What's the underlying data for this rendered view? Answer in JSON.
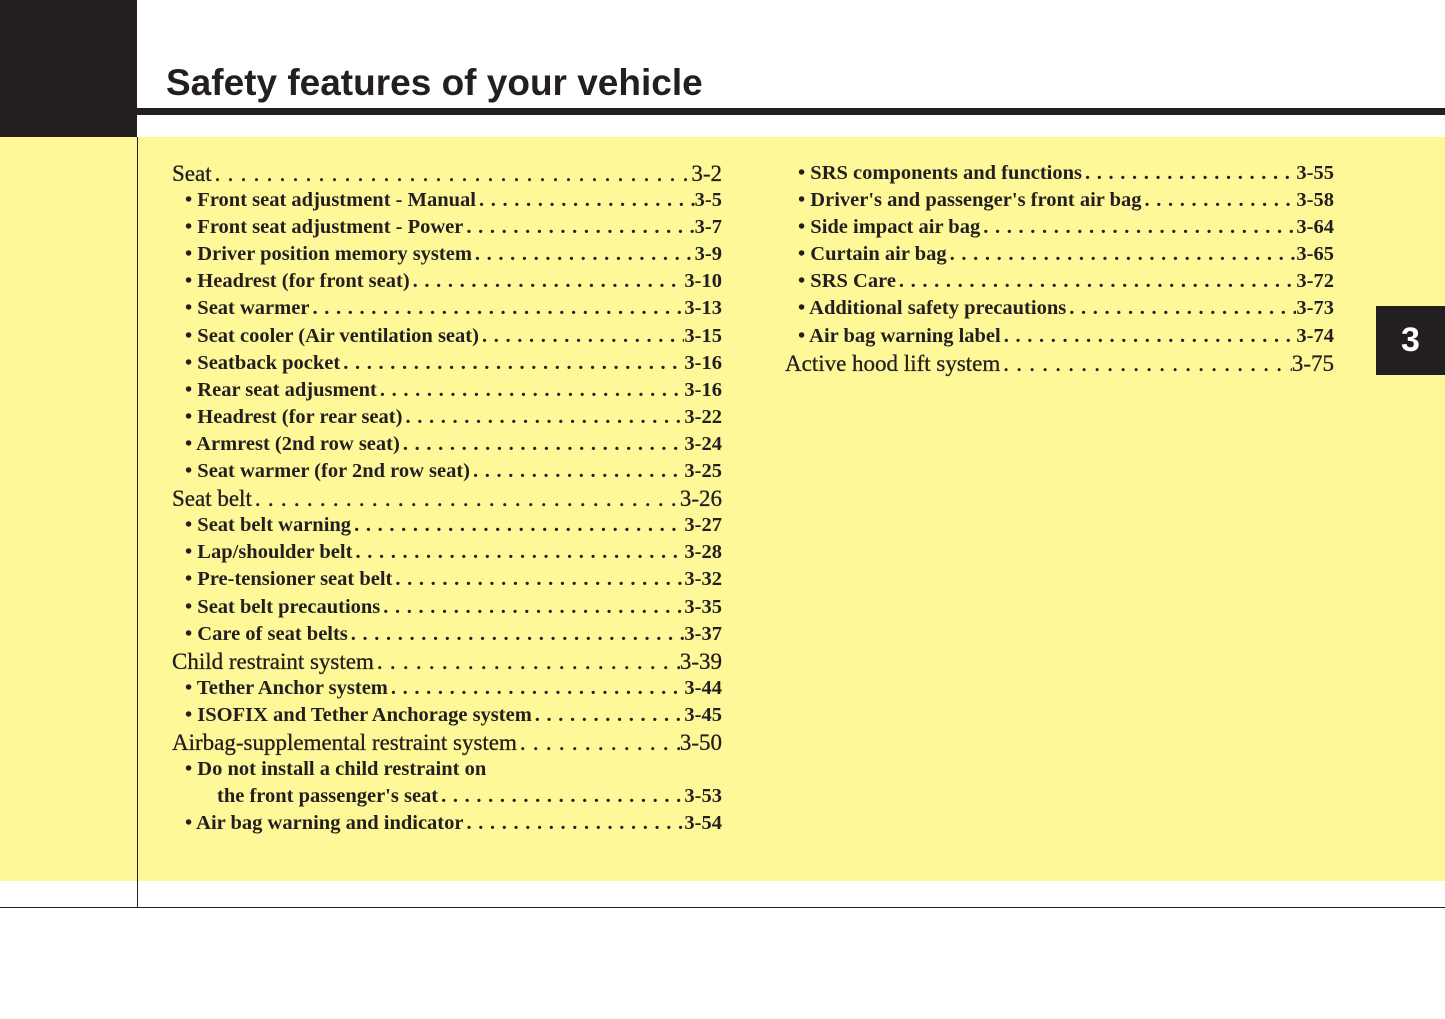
{
  "header": {
    "title": "Safety features of your vehicle"
  },
  "chapter_tab": "3",
  "toc_left": [
    {
      "label": "Seat",
      "page": "3-2",
      "level": "h"
    },
    {
      "label": "• Front seat adjustment - Manual",
      "page": "3-5",
      "level": "sub"
    },
    {
      "label": "• Front seat adjustment - Power",
      "page": "3-7",
      "level": "sub"
    },
    {
      "label": "• Driver position memory system",
      "page": "3-9",
      "level": "sub"
    },
    {
      "label": "• Headrest (for front seat)",
      "page": "3-10",
      "level": "sub"
    },
    {
      "label": "• Seat warmer",
      "page": "3-13",
      "level": "sub"
    },
    {
      "label": "• Seat cooler (Air ventilation seat)",
      "page": "3-15",
      "level": "sub"
    },
    {
      "label": "• Seatback pocket",
      "page": "3-16",
      "level": "sub"
    },
    {
      "label": "• Rear seat adjusment",
      "page": "3-16",
      "level": "sub"
    },
    {
      "label": "• Headrest (for rear seat)",
      "page": "3-22",
      "level": "sub"
    },
    {
      "label": "• Armrest (2nd row seat)",
      "page": "3-24",
      "level": "sub"
    },
    {
      "label": "• Seat warmer (for 2nd row seat)",
      "page": "3-25",
      "level": "sub"
    },
    {
      "label": "Seat belt",
      "page": "3-26",
      "level": "h"
    },
    {
      "label": "• Seat belt warning",
      "page": "3-27",
      "level": "sub"
    },
    {
      "label": "• Lap/shoulder belt",
      "page": "3-28",
      "level": "sub"
    },
    {
      "label": "• Pre-tensioner seat belt",
      "page": "3-32",
      "level": "sub"
    },
    {
      "label": "• Seat belt precautions",
      "page": "3-35",
      "level": "sub"
    },
    {
      "label": "• Care of seat belts",
      "page": "3-37",
      "level": "sub"
    },
    {
      "label": "Child restraint system",
      "page": "3-39",
      "level": "h"
    },
    {
      "label": "• Tether Anchor system",
      "page": "3-44",
      "level": "sub"
    },
    {
      "label": "• ISOFIX and Tether Anchorage system",
      "page": "3-45",
      "level": "sub"
    },
    {
      "label": "Airbag-supplemental restraint system",
      "page": "3-50",
      "level": "h"
    },
    {
      "label": "• Do not install a child restraint on",
      "page": "",
      "level": "sub"
    },
    {
      "label": "the front passenger's seat",
      "page": "3-53",
      "level": "cont"
    },
    {
      "label": "• Air bag warning and indicator",
      "page": "3-54",
      "level": "sub"
    }
  ],
  "toc_right": [
    {
      "label": "• SRS components and functions",
      "page": "3-55",
      "level": "sub"
    },
    {
      "label": "• Driver's and passenger's front air bag",
      "page": "3-58",
      "level": "sub"
    },
    {
      "label": "• Side impact air bag",
      "page": "3-64",
      "level": "sub"
    },
    {
      "label": "• Curtain air bag",
      "page": "3-65",
      "level": "sub"
    },
    {
      "label": "• SRS Care",
      "page": "3-72",
      "level": "sub"
    },
    {
      "label": "• Additional safety precautions",
      "page": "3-73",
      "level": "sub"
    },
    {
      "label": "• Air bag warning label",
      "page": "3-74",
      "level": "sub"
    },
    {
      "label": "Active hood lift system",
      "page": "3-75",
      "level": "h"
    }
  ],
  "colors": {
    "page_bg": "#ffffff",
    "content_bg": "#fef898",
    "ink": "#231f20"
  }
}
